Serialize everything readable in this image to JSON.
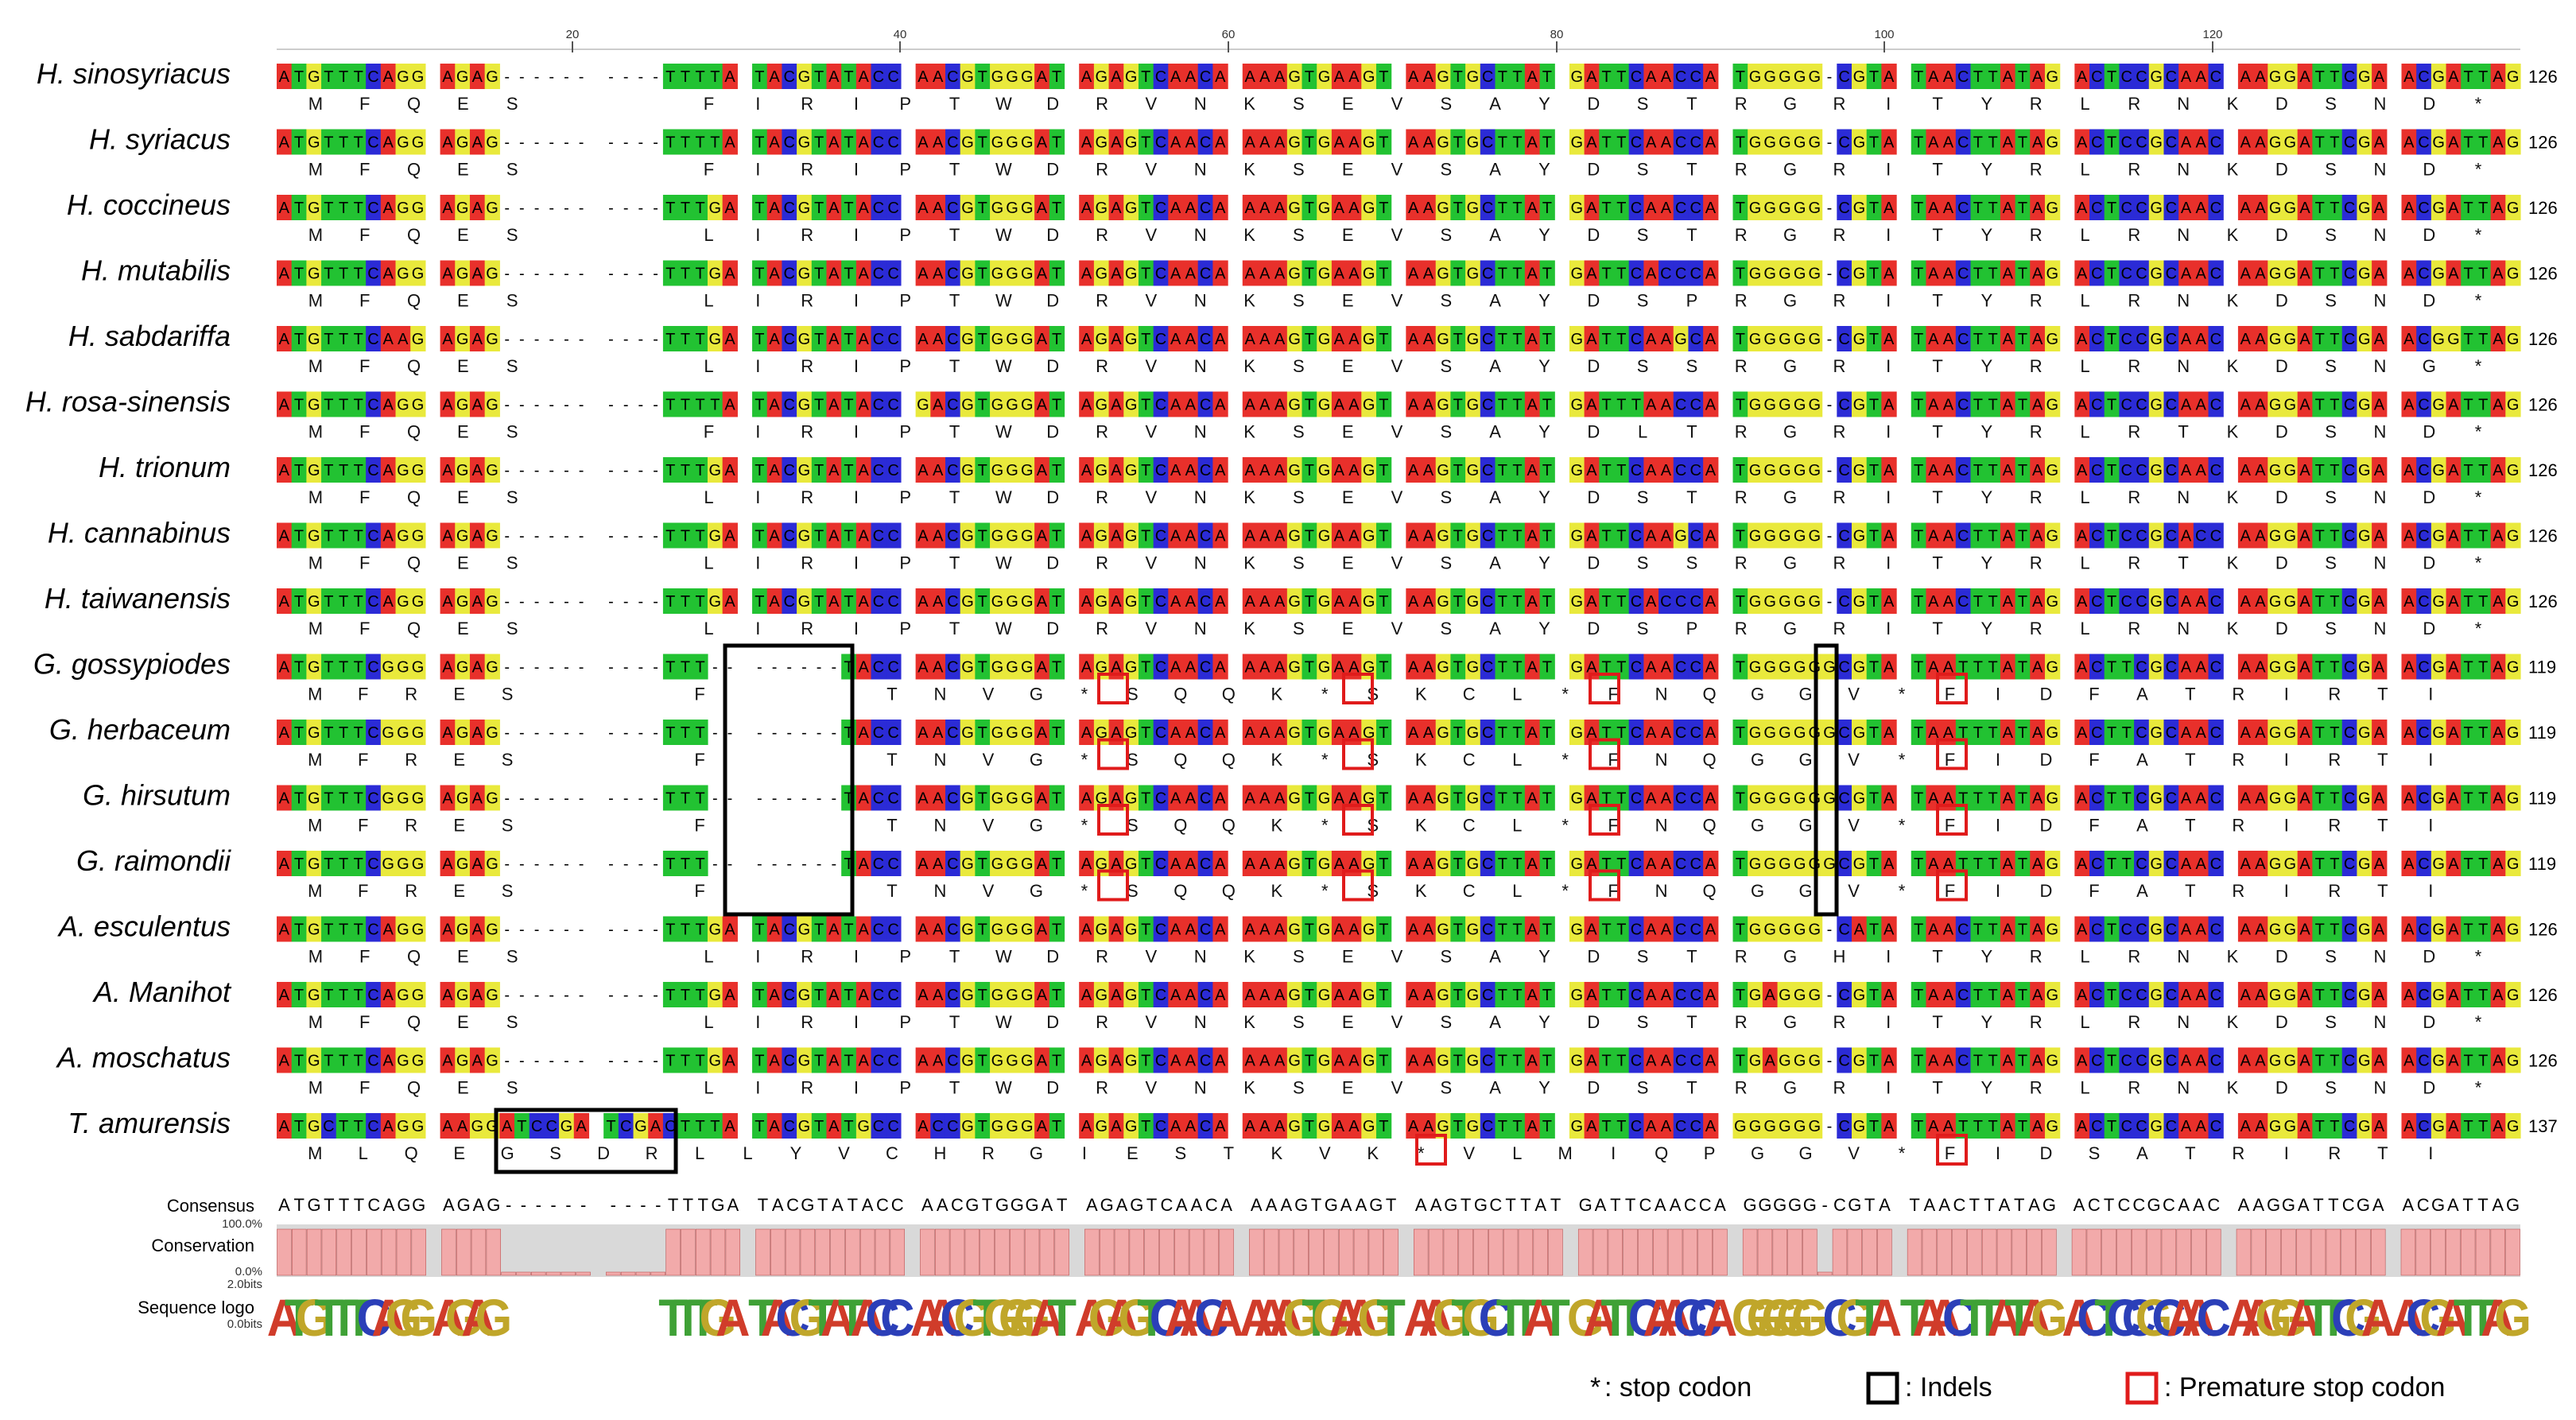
{
  "ruler": [
    "20",
    "40",
    "60",
    "80",
    "100",
    "120"
  ],
  "nucleotide_colors": {
    "A": "#e8302b",
    "T": "#22c232",
    "G": "#e9e93c",
    "C": "#2b2bd6",
    "-": "#ffffff"
  },
  "rows": [
    {
      "species": "H. sinosyriacus",
      "seq": "ATGTTTCAGG AGAG------ ----TTTTA TACGTATACC AACGTGGGAT AGAGTCAACA AAAGTGAAGT AAGTGCTTAT GATTCAACCA TGGGGG-CGTA TAACTTATAG ACTCCGCAAC AAGGATTCGA ACGATTAG",
      "aa": "M F Q E S · · · F I R I P T W D R V N K S E V S A Y D S T R G R I T Y R L R N K D S N D *",
      "length": "126"
    },
    {
      "species": "H. syriacus",
      "seq": "ATGTTTCAGG AGAG------ ----TTTTA TACGTATACC AACGTGGGAT AGAGTCAACA AAAGTGAAGT AAGTGCTTAT GATTCAACCA TGGGGG-CGTA TAACTTATAG ACTCCGCAAC AAGGATTCGA ACGATTAG",
      "aa": "M F Q E S · · · F I R I P T W D R V N K S E V S A Y D S T R G R I T Y R L R N K D S N D *",
      "length": "126"
    },
    {
      "species": "H. coccineus",
      "seq": "ATGTTTCAGG AGAG------ ----TTTGA TACGTATACC AACGTGGGAT AGAGTCAACA AAAGTGAAGT AAGTGCTTAT GATTCAACCA TGGGGG-CGTA TAACTTATAG ACTCCGCAAC AAGGATTCGA ACGATTAG",
      "aa": "M F Q E S · · · L I R I P T W D R V N K S E V S A Y D S T R G R I T Y R L R N K D S N D *",
      "length": "126"
    },
    {
      "species": "H. mutabilis",
      "seq": "ATGTTTCAGG AGAG------ ----TTTGA TACGTATACC AACGTGGGAT AGAGTCAACA AAAGTGAAGT AAGTGCTTAT GATTCACCCA TGGGGG-CGTA TAACTTATAG ACTCCGCAAC AAGGATTCGA ACGATTAG",
      "aa": "M F Q E S · · · L I R I P T W D R V N K S E V S A Y D S P R G R I T Y R L R N K D S N D *",
      "length": "126"
    },
    {
      "species": "H. sabdariffa",
      "seq": "ATGTTTCAAG AGAG------ ----TTTGA TACGTATACC AACGTGGGAT AGAGTCAACA AAAGTGAAGT AAGTGCTTAT GATTCAAGCA TGGGGG-CGTA TAACTTATAG ACTCCGCAAC AAGGATTCGA ACGGTTAG",
      "aa": "M F Q E S · · · L I R I P T W D R V N K S E V S A Y D S S R G R I T Y R L R N K D S N G *",
      "length": "126"
    },
    {
      "species": "H. rosa-sinensis",
      "seq": "ATGTTTCAGG AGAG------ ----TTTTA TACGTATACC GACGTGGGAT AGAGTCAACA AAAGTGAAGT AAGTGCTTAT GATTTAACCA TGGGGG-CGTA TAACTTATAG ACTCCGCAAC AAGGATTCGA ACGATTAG",
      "aa": "M F Q E S · · · F I R I P T W D R V N K S E V S A Y D L T R G R I T Y R L R T K D S N D *",
      "length": "126"
    },
    {
      "species": "H. trionum",
      "seq": "ATGTTTCAGG AGAG------ ----TTTGA TACGTATACC AACGTGGGAT AGAGTCAACA AAAGTGAAGT AAGTGCTTAT GATTCAACCA TGGGGG-CGTA TAACTTATAG ACTCCGCAAC AAGGATTCGA ACGATTAG",
      "aa": "M F Q E S · · · L I R I P T W D R V N K S E V S A Y D S T R G R I T Y R L R N K D S N D *",
      "length": "126"
    },
    {
      "species": "H. cannabinus",
      "seq": "ATGTTTCAGG AGAG------ ----TTTGA TACGTATACC AACGTGGGAT AGAGTCAACA AAAGTGAAGT AAGTGCTTAT GATTCAAGCA TGGGGG-CGTA TAACTTATAG ACTCCGCACC AAGGATTCGA ACGATTAG",
      "aa": "M F Q E S · · · L I R I P T W D R V N K S E V S A Y D S S R G R I T Y R L R T K D S N D *",
      "length": "126"
    },
    {
      "species": "H. taiwanensis",
      "seq": "ATGTTTCAGG AGAG------ ----TTTGA TACGTATACC AACGTGGGAT AGAGTCAACA AAAGTGAAGT AAGTGCTTAT GATTCACCCA TGGGGG-CGTA TAACTTATAG ACTCCGCAAC AAGGATTCGA ACGATTAG",
      "aa": "M F Q E S · · · L I R I P T W D R V N K S E V S A Y D S P R G R I T Y R L R N K D S N D *",
      "length": "126"
    },
    {
      "species": "G. gossypiodes",
      "seq": "ATGTTTCGGG AGAG------ ----TTT-- ------TACC AACGTGGGAT AGAGTCAACA AAAGTGAAGT AAGTGCTTAT GATTCAACCA TGGGGGGCGTA TAATTTATAG ACTTCGCAAC AAGGATTCGA ACGATTAG",
      "aa": "M F R E S · · · F · · · T N V G * S Q Q K * S K C L * F N Q G G V * F I D F A T R I R T I ·",
      "length": "119"
    },
    {
      "species": "G. herbaceum",
      "seq": "ATGTTTCGGG AGAG------ ----TTT-- ------TACC AACGTGGGAT AGAGTCAACA AAAGTGAAGT AAGTGCTTAT GATTCAACCA TGGGGGGCGTA TAATTTATAG ACTTCGCAAC AAGGATTCGA ACGATTAG",
      "aa": "M F R E S · · · F · · · T N V G * S Q Q K * S K C L * F N Q G G V * F I D F A T R I R T I ·",
      "length": "119"
    },
    {
      "species": "G. hirsutum",
      "seq": "ATGTTTCGGG AGAG------ ----TTT-- ------TACC AACGTGGGAT AGAGTCAACA AAAGTGAAGT AAGTGCTTAT GATTCAACCA TGGGGGGCGTA TAATTTATAG ACTTCGCAAC AAGGATTCGA ACGATTAG",
      "aa": "M F R E S · · · F · · · T N V G * S Q Q K * S K C L * F N Q G G V * F I D F A T R I R T I ·",
      "length": "119"
    },
    {
      "species": "G. raimondii",
      "seq": "ATGTTTCGGG AGAG------ ----TTT-- ------TACC AACGTGGGAT AGAGTCAACA AAAGTGAAGT AAGTGCTTAT GATTCAACCA TGGGGGGCGTA TAATTTATAG ACTTCGCAAC AAGGATTCGA ACGATTAG",
      "aa": "M F R E S · · · F · · · T N V G * S Q Q K * S K C L * F N Q G G V * F I D F A T R I R T I ·",
      "length": "119"
    },
    {
      "species": "A. esculentus",
      "seq": "ATGTTTCAGG AGAG------ ----TTTGA TACGTATACC AACGTGGGAT AGAGTCAACA AAAGTGAAGT AAGTGCTTAT GATTCAACCA TGGGGG-CATA TAACTTATAG ACTCCGCAAC AAGGATTCGA ACGATTAG",
      "aa": "M F Q E S · · · L I R I P T W D R V N K S E V S A Y D S T R G H I T Y R L R N K D S N D *",
      "length": "126"
    },
    {
      "species": "A. Manihot",
      "seq": "ATGTTTCAGG AGAG------ ----TTTGA TACGTATACC AACGTGGGAT AGAGTCAACA AAAGTGAAGT AAGTGCTTAT GATTCAACCA TGAGGG-CGTA TAACTTATAG ACTCCGCAAC AAGGATTCGA ACGATTAG",
      "aa": "M F Q E S · · · L I R I P T W D R V N K S E V S A Y D S T R G R I T Y R L R N K D S N D *",
      "length": "126"
    },
    {
      "species": "A. moschatus",
      "seq": "ATGTTTCAGG AGAG------ ----TTTGA TACGTATACC AACGTGGGAT AGAGTCAACA AAAGTGAAGT AAGTGCTTAT GATTCAACCA TGAGGG-CGTA TAACTTATAG ACTCCGCAAC AAGGATTCGA ACGATTAG",
      "aa": "M F Q E S · · · L I R I P T W D R V N K S E V S A Y D S T R G R I T Y R L R N K D S N D *",
      "length": "126"
    },
    {
      "species": "T. amurensis",
      "seq": "ATGCTTCAGG AAGGATCCGA TCGACTTTA TACGTATGCC ACCGTGGGAT AGAGTCAACA AAAGTGAAGT AAGTGCTTAT GATTCAACCA GGGGGG-CGTA TAATTTATAG ACTCCGCAAC AAGGATTCGA ACGATTAG",
      "aa": "M L Q E G S D R L L Y V C H R G I E S T K V K * V L M I Q P G G V * F I D S A T R I R T I ·",
      "length": "137"
    }
  ],
  "consensus_label": "Consensus",
  "consensus": "ATGTTTCAGG AGAG------ ----TTTGA TACGTATACC AACGTGGGAT AGAGTCAACA AAAGTGAAGT AAGTGCTTAT GATTCAACCA GGGGG-CGTA TAACTTATAG ACTCCGCAAC AAGGATTCGA ACGATTAG",
  "conservation_label": "Conservation",
  "conservation_axis": [
    "100.0%",
    "0.0%"
  ],
  "logo_label": "Sequence logo",
  "logo_axis": [
    "2.0bits",
    "0.0bits"
  ],
  "logo_text": "ATGTTTCAGG AGAG------ ----TTTGA TACGTATACC AACGTGGGAT AGAGTCAACA AAAGTGAAGT AAGTGCTTAT GATTCAACCA GGGGG-CGTA TAACTTATAG ACTCCGCAAC AAGGATTCGA ACGATTAG",
  "legend": {
    "stop_symbol": "*",
    "stop_label": ": stop codon",
    "indel_label": ": Indels",
    "premature_label": ": Premature stop codon",
    "indel_color": "#000000",
    "premature_color": "#e01b1b"
  }
}
